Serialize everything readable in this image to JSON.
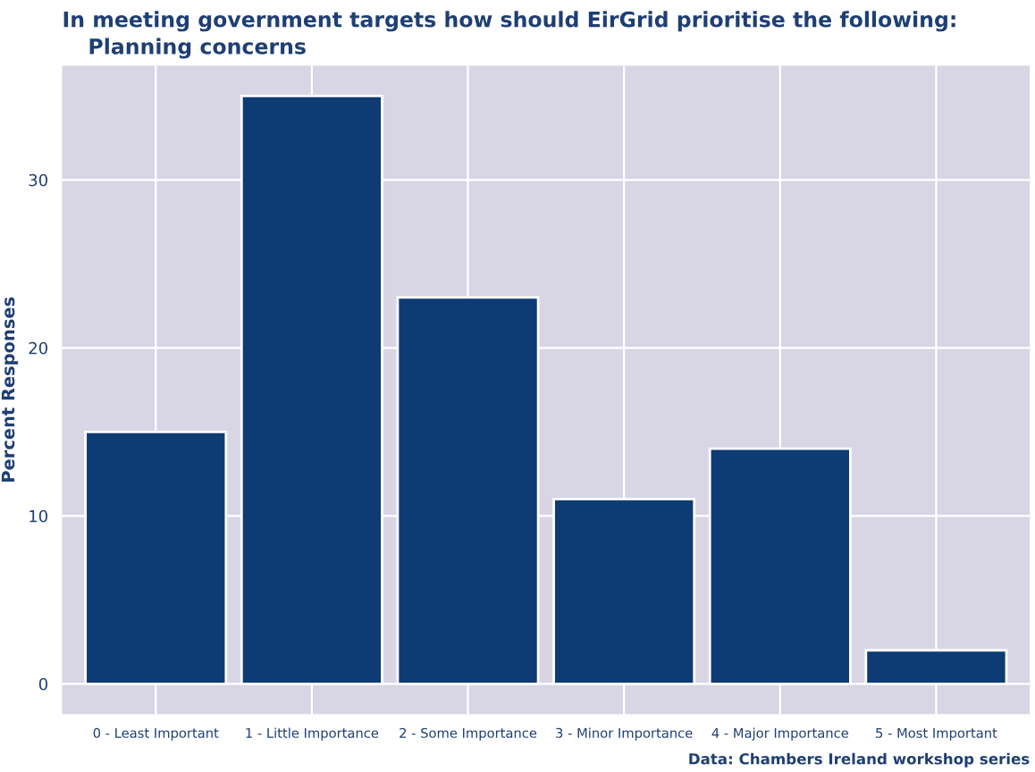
{
  "chart_data": {
    "type": "bar",
    "title": "In meeting government targets how should EirGrid prioritise the following:",
    "subtitle": "Planning concerns",
    "ylabel": "Percent Responses",
    "categories": [
      "0 - Least Important",
      "1 - Little Importance",
      "2 - Some Importance",
      "3 - Minor Importance",
      "4 - Major Importance",
      "5 - Most Important"
    ],
    "values": [
      15,
      35,
      23,
      11,
      14,
      2
    ],
    "color": "#0e3b73",
    "ylim": [
      -1.8,
      36.8
    ],
    "yticks": [
      0,
      10,
      20,
      30
    ],
    "grid": true,
    "legend": false,
    "annotations": [
      "Data: Chambers Ireland workshop series"
    ]
  }
}
